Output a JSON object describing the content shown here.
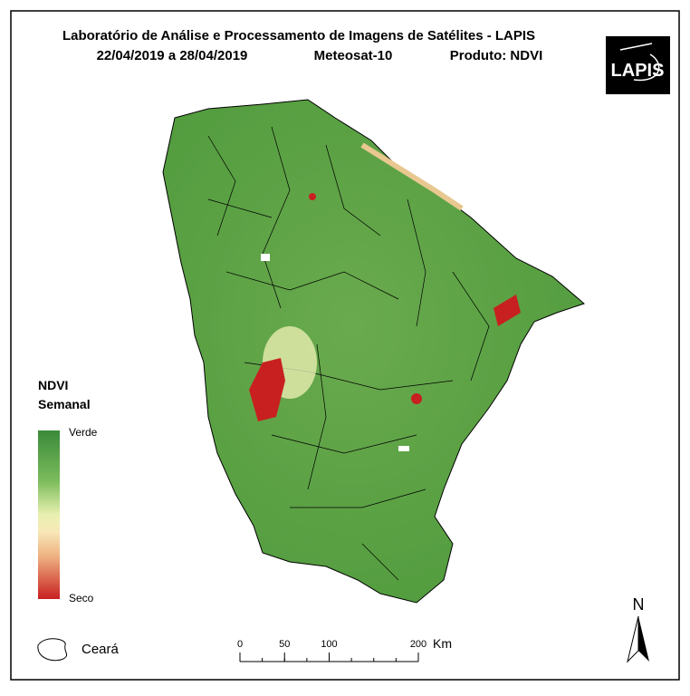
{
  "header": {
    "title": "Laboratório de Análise e Processamento de Imagens de Satélites - LAPIS",
    "period": "22/04/2019  a 28/04/2019",
    "satellite": "Meteosat-10",
    "product": "Produto: NDVI",
    "logo": "LAPIS"
  },
  "legend": {
    "title_line1": "NDVI",
    "title_line2": "Semanal",
    "high_label": "Verde",
    "low_label": "Seco",
    "region_label": "Ceará"
  },
  "scale_bar": {
    "ticks": [
      0,
      50,
      100,
      200
    ],
    "unit": "Km"
  },
  "north_arrow": {
    "label": "N"
  }
}
